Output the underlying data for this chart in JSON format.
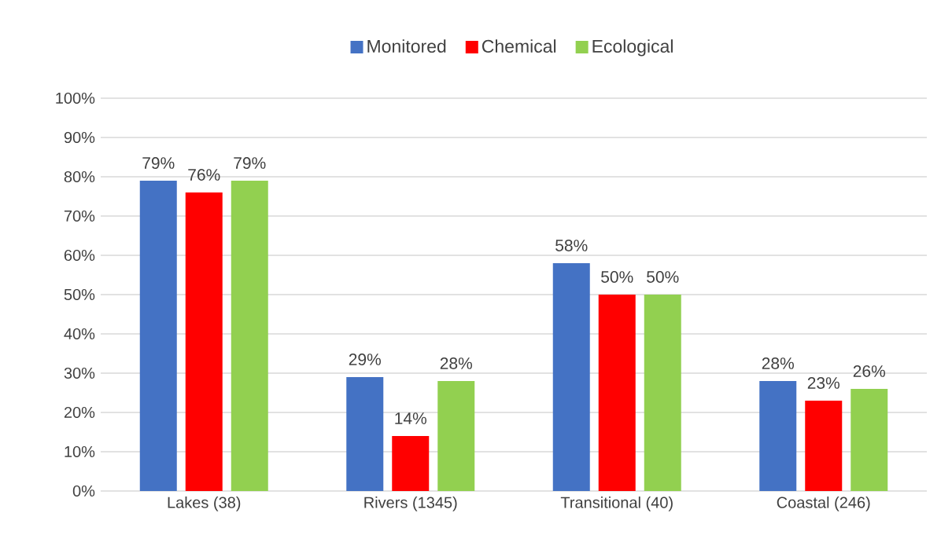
{
  "chart_data": {
    "type": "bar",
    "categories": [
      "Lakes (38)",
      "Rivers (1345)",
      "Transitional (40)",
      "Coastal (246)"
    ],
    "series": [
      {
        "name": "Monitored",
        "color": "#4472c4",
        "values": [
          79,
          29,
          58,
          28
        ],
        "value_labels": [
          "79%",
          "29%",
          "58%",
          "28%"
        ]
      },
      {
        "name": "Chemical",
        "color": "#ff0000",
        "values": [
          76,
          14,
          50,
          23
        ],
        "value_labels": [
          "76%",
          "14%",
          "50%",
          "23%"
        ]
      },
      {
        "name": "Ecological",
        "color": "#92d050",
        "values": [
          79,
          28,
          50,
          26
        ],
        "value_labels": [
          "79%",
          "28%",
          "50%",
          "26%"
        ]
      }
    ],
    "ylim": [
      0,
      100
    ],
    "yticks": [
      {
        "value": 0,
        "label": "0%"
      },
      {
        "value": 10,
        "label": "10%"
      },
      {
        "value": 20,
        "label": "20%"
      },
      {
        "value": 30,
        "label": "30%"
      },
      {
        "value": 40,
        "label": "40%"
      },
      {
        "value": 50,
        "label": "50%"
      },
      {
        "value": 60,
        "label": "60%"
      },
      {
        "value": 70,
        "label": "70%"
      },
      {
        "value": 80,
        "label": "80%"
      },
      {
        "value": 90,
        "label": "90%"
      },
      {
        "value": 100,
        "label": "100%"
      }
    ],
    "grid": "y",
    "legend": "top"
  }
}
